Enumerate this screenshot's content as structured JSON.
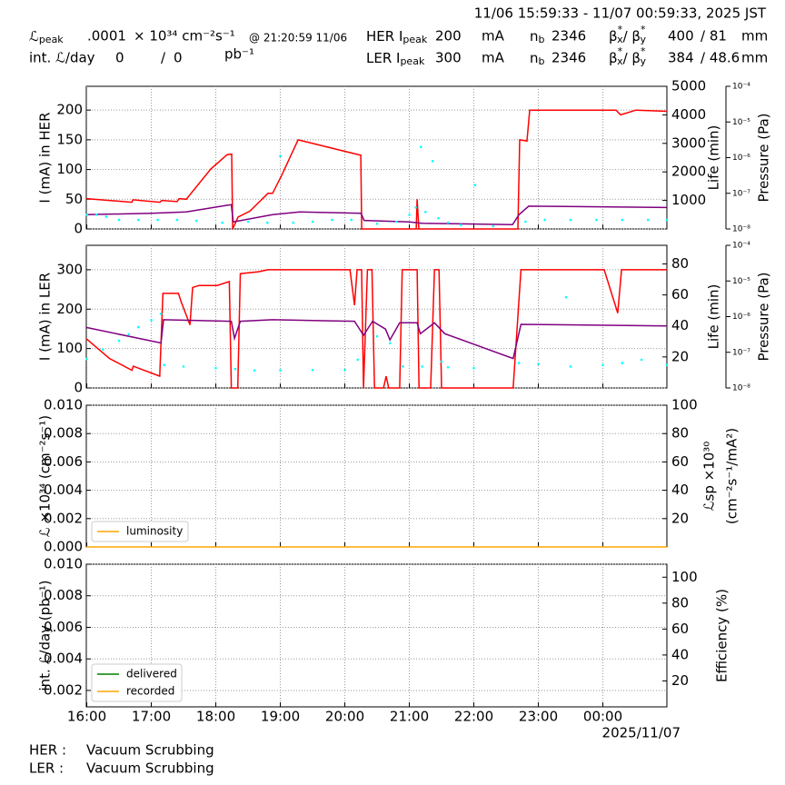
{
  "header": {
    "timerange": "11/06 15:59:33 - 11/07 00:59:33, 2025 JST",
    "lum_peak": {
      "symbol": "ℒ",
      "sub": "peak",
      "value": ".0001",
      "unit": "× 10³⁴ cm⁻²s⁻¹",
      "time": "@ 21:20:59 11/06"
    },
    "int_lum": {
      "label": "int. ℒ/day",
      "delivered": "0",
      "sep": "/",
      "recorded": "0",
      "unit": "pb⁻¹"
    },
    "her": {
      "label": "HER I",
      "sub": "peak",
      "current": "200",
      "unit": "mA",
      "nb_symbol": "n",
      "nb_sub": "b",
      "nb": "2346",
      "beta": [
        "β",
        "*",
        "x",
        "/ β",
        "*",
        "y"
      ],
      "betax": "400",
      "betay": "/ 81",
      "beta_unit": "mm"
    },
    "ler": {
      "label": "LER I",
      "sub": "peak",
      "current": "300",
      "unit": "mA",
      "nb_symbol": "n",
      "nb_sub": "b",
      "nb": "2346",
      "beta": [
        "β",
        "*",
        "x",
        "/ β",
        "*",
        "y"
      ],
      "betax": "384",
      "betay": "/ 48.6",
      "beta_unit": "mm"
    }
  },
  "footer": {
    "rows": [
      [
        "HER :",
        "Vacuum Scrubbing"
      ],
      [
        "LER :",
        "Vacuum Scrubbing"
      ]
    ]
  },
  "chart_data": [
    {
      "type": "line",
      "ylabel": "I (mA) in HER",
      "y2label": "Life (min)",
      "y3label": "Pressure (Pa)",
      "ylim": [
        0,
        240
      ],
      "yticks": [
        0,
        50,
        100,
        150,
        200
      ],
      "y2lim": [
        0,
        5000
      ],
      "y2ticks": [
        1000,
        2000,
        3000,
        4000,
        5000
      ],
      "y3lim": [
        1e-08,
        0.0001
      ],
      "y3log": true,
      "y3ticks": [
        {
          "value": 1e-08,
          "label": "10⁻⁸"
        },
        {
          "value": 1e-07,
          "label": "10⁻⁷"
        },
        {
          "value": 1e-06,
          "label": "10⁻⁶"
        },
        {
          "value": 1e-05,
          "label": "10⁻⁵"
        },
        {
          "value": 0.0001,
          "label": "10⁻⁴"
        }
      ],
      "grid": true,
      "series": [
        {
          "color": "#ff0000",
          "x": [
            15.993,
            16.697,
            16.715,
            17.134,
            17.162,
            17.401,
            17.43,
            17.542,
            17.923,
            18.176,
            18.246,
            18.261,
            18.345,
            18.528,
            18.669,
            18.81,
            18.88,
            19.021,
            19.275,
            20.247,
            20.261,
            21.106,
            21.12,
            21.148,
            22.683,
            22.711,
            22.824,
            22.866,
            24.204,
            24.275,
            24.514,
            24.993
          ],
          "values": [
            51,
            45,
            49,
            45,
            48,
            46,
            51,
            50,
            101,
            125,
            126,
            0,
            20,
            30,
            45,
            60,
            60,
            90,
            150,
            124,
            0,
            0,
            50,
            0,
            0,
            150,
            148,
            200,
            200,
            192,
            200,
            198
          ]
        },
        {
          "color": "#800080",
          "axis": "y2",
          "x": [
            15.993,
            17.0,
            17.54,
            18.18,
            18.24,
            18.27,
            18.88,
            19.3,
            20.25,
            20.3,
            21.0,
            21.2,
            22.6,
            22.7,
            22.85,
            24.993
          ],
          "values": [
            500,
            550,
            600,
            830,
            850,
            250,
            500,
            600,
            550,
            300,
            250,
            200,
            150,
            500,
            800,
            750
          ]
        },
        {
          "color": "#00ffff",
          "axis": "y3",
          "mode": "markers",
          "x": [
            16.0,
            16.15,
            16.3,
            16.5,
            16.8,
            17.1,
            17.4,
            17.7,
            18.1,
            18.5,
            18.8,
            19.0,
            19.2,
            19.5,
            19.8,
            20.1,
            20.5,
            20.8,
            21.0,
            21.1,
            21.18,
            21.25,
            21.36,
            21.45,
            21.6,
            21.8,
            22.02,
            22.3,
            22.8,
            23.1,
            23.5,
            23.9,
            24.3,
            24.7,
            24.99
          ],
          "values": [
            2.5e-08,
            2.5e-08,
            2.2e-08,
            1.8e-08,
            1.8e-08,
            1.8e-08,
            1.8e-08,
            1.7e-08,
            1.5e-08,
            1.6e-08,
            1.5e-08,
            1.1e-06,
            1.5e-08,
            1.6e-08,
            1.8e-08,
            1.8e-08,
            1.4e-08,
            1.6e-08,
            2.5e-08,
            4e-08,
            2e-06,
            3e-08,
            8e-07,
            2e-08,
            1.5e-08,
            1.3e-08,
            1.7e-07,
            1.2e-08,
            1.6e-08,
            1.8e-08,
            1.8e-08,
            1.8e-08,
            1.8e-08,
            1.8e-08,
            1.8e-08
          ]
        }
      ]
    },
    {
      "type": "line",
      "ylabel": "I (mA) in LER",
      "y2label": "Life (min)",
      "y3label": "Pressure (Pa)",
      "ylim": [
        0,
        362
      ],
      "yticks": [
        0,
        100,
        200,
        300
      ],
      "y2lim": [
        0,
        92
      ],
      "y2ticks": [
        20,
        40,
        60,
        80
      ],
      "y3lim": [
        1e-08,
        0.0001
      ],
      "y3log": true,
      "y3ticks": [
        {
          "value": 1e-08,
          "label": "10⁻⁸"
        },
        {
          "value": 1e-07,
          "label": "10⁻⁷"
        },
        {
          "value": 1e-06,
          "label": "10⁻⁶"
        },
        {
          "value": 1e-05,
          "label": "10⁻⁵"
        },
        {
          "value": 0.0001,
          "label": "10⁻⁴"
        }
      ],
      "grid": true,
      "series": [
        {
          "color": "#ff0000",
          "x": [
            15.993,
            16.35,
            16.7,
            16.72,
            17.13,
            17.18,
            17.42,
            17.46,
            17.6,
            17.64,
            17.74,
            18.02,
            18.21,
            18.24,
            18.34,
            18.38,
            18.66,
            18.81,
            20.08,
            20.15,
            20.19,
            20.26,
            20.29,
            20.35,
            20.42,
            20.46,
            20.6,
            20.64,
            20.68,
            20.85,
            20.89,
            21.12,
            21.15,
            21.33,
            21.39,
            21.46,
            21.5,
            22.61,
            22.73,
            24.02,
            24.23,
            24.29,
            24.993
          ],
          "values": [
            125,
            75,
            45,
            55,
            30,
            240,
            240,
            220,
            160,
            255,
            260,
            260,
            270,
            0,
            0,
            290,
            295,
            300,
            300,
            210,
            300,
            300,
            0,
            300,
            300,
            0,
            0,
            30,
            0,
            0,
            300,
            300,
            0,
            0,
            300,
            300,
            0,
            0,
            300,
            300,
            190,
            300,
            300
          ]
        },
        {
          "color": "#800080",
          "axis": "y2",
          "x": [
            15.993,
            17.15,
            17.19,
            18.24,
            18.29,
            18.38,
            18.88,
            20.15,
            20.29,
            20.43,
            20.63,
            20.7,
            20.85,
            21.12,
            21.17,
            21.39,
            21.55,
            22.61,
            22.73,
            24.993
          ],
          "values": [
            39,
            29,
            44,
            43,
            32,
            43,
            44,
            43,
            34,
            43,
            38,
            31,
            42,
            42,
            35,
            42,
            35,
            19,
            41,
            40
          ]
        },
        {
          "color": "#00ffff",
          "axis": "y3",
          "mode": "markers",
          "x": [
            16.0,
            16.25,
            16.5,
            16.65,
            16.8,
            17.0,
            17.15,
            17.2,
            17.5,
            18.0,
            18.3,
            18.6,
            19.0,
            19.5,
            20.0,
            20.2,
            20.5,
            20.7,
            20.9,
            21.2,
            21.5,
            21.6,
            22.0,
            22.7,
            23.0,
            23.43,
            23.5,
            24.0,
            24.3,
            24.6,
            24.99
          ],
          "values": [
            6.5e-08,
            1.2e-07,
            2.1e-07,
            3.2e-07,
            5.1e-07,
            8e-07,
            1.2e-06,
            4.4e-08,
            4e-08,
            3.6e-08,
            3.4e-08,
            3.1e-08,
            3.1e-08,
            3.2e-08,
            3.2e-08,
            6.2e-08,
            2.8e-07,
            1.8e-07,
            4e-08,
            4e-08,
            5.5e-08,
            3.8e-08,
            3.6e-08,
            5e-08,
            4.7e-08,
            3.5e-06,
            4e-08,
            4.4e-08,
            5e-08,
            6.2e-08,
            4.4e-08
          ]
        }
      ]
    },
    {
      "type": "line",
      "ylabel": "ℒ ×10³⁴ (cm⁻²s⁻¹)",
      "y2label": [
        "ℒsp ×10³⁰",
        "(cm⁻²s⁻¹/mA²)"
      ],
      "ylim": [
        0,
        0.01
      ],
      "yticks": [
        {
          "value": 0,
          "label": "0.000"
        },
        {
          "value": 0.002,
          "label": "0.002"
        },
        {
          "value": 0.004,
          "label": "0.004"
        },
        {
          "value": 0.006,
          "label": "0.006"
        },
        {
          "value": 0.008,
          "label": "0.008"
        },
        {
          "value": 0.01,
          "label": "0.010"
        }
      ],
      "y2lim": [
        0,
        100
      ],
      "y2ticks": [
        20,
        40,
        60,
        80,
        100
      ],
      "grid": true,
      "legend": "lower left",
      "series": [
        {
          "name": "luminosity",
          "color": "#ffa500",
          "x": [
            15.993,
            24.993
          ],
          "values": [
            0,
            0
          ]
        }
      ]
    },
    {
      "type": "line",
      "ylabel": "int. ℒ/day (pb⁻¹)",
      "y2label": "Efficiency (%)",
      "ylim": [
        0.00096,
        0.01
      ],
      "yticks": [
        {
          "value": 0.002,
          "label": "0.002"
        },
        {
          "value": 0.004,
          "label": "0.004"
        },
        {
          "value": 0.006,
          "label": "0.006"
        },
        {
          "value": 0.008,
          "label": "0.008"
        },
        {
          "value": 0.01,
          "label": "0.010"
        }
      ],
      "y2lim": [
        0,
        110
      ],
      "y2ticks": [
        20,
        40,
        60,
        80,
        100
      ],
      "grid": true,
      "legend": "lower left",
      "xlim": [
        15.9925,
        24.9925
      ],
      "xticks": [
        {
          "value": 16,
          "label": "16:00"
        },
        {
          "value": 17,
          "label": "17:00"
        },
        {
          "value": 18,
          "label": "18:00"
        },
        {
          "value": 19,
          "label": "19:00"
        },
        {
          "value": 20,
          "label": "20:00"
        },
        {
          "value": 21,
          "label": "21:00"
        },
        {
          "value": 22,
          "label": "22:00"
        },
        {
          "value": 23,
          "label": "23:00"
        },
        {
          "value": 24,
          "label": "00:00"
        }
      ],
      "xdate": "2025/11/07",
      "series": [
        {
          "name": "delivered",
          "color": "#008000",
          "x": [],
          "values": []
        },
        {
          "name": "recorded",
          "color": "#ffa500",
          "x": [],
          "values": []
        }
      ]
    }
  ]
}
